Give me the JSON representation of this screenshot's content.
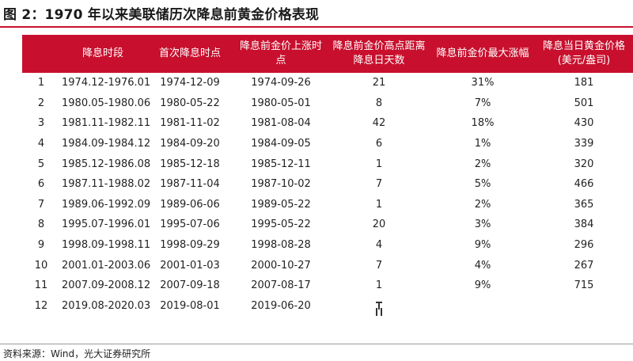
{
  "title": "图 2：1970 年以来美联储历次降息前黄金价格表现",
  "table": {
    "headers": {
      "index": "",
      "period": "降息时段",
      "first_cut": "首次降息时点",
      "rise_point": "降息前金价上涨时点",
      "days_from_peak": "降息前金价高点距离降息日天数",
      "max_gain": "降息前金价最大涨幅",
      "price_on_cut": "降息当日黄金价格(美元/盎司)"
    },
    "rows": [
      {
        "index": "1",
        "period": "1974.12-1976.01",
        "first_cut": "1974-12-09",
        "rise_point": "1974-09-26",
        "days": "21",
        "gain": "31%",
        "price": "181"
      },
      {
        "index": "2",
        "period": "1980.05-1980.06",
        "first_cut": "1980-05-22",
        "rise_point": "1980-05-01",
        "days": "8",
        "gain": "7%",
        "price": "501"
      },
      {
        "index": "3",
        "period": "1981.11-1982.11",
        "first_cut": "1981-11-02",
        "rise_point": "1981-08-04",
        "days": "42",
        "gain": "18%",
        "price": "430"
      },
      {
        "index": "4",
        "period": "1984.09-1984.12",
        "first_cut": "1984-09-20",
        "rise_point": "1984-09-05",
        "days": "6",
        "gain": "1%",
        "price": "339"
      },
      {
        "index": "5",
        "period": "1985.12-1986.08",
        "first_cut": "1985-12-18",
        "rise_point": "1985-12-11",
        "days": "1",
        "gain": "2%",
        "price": "320"
      },
      {
        "index": "6",
        "period": "1987.11-1988.02",
        "first_cut": "1987-11-04",
        "rise_point": "1987-10-02",
        "days": "7",
        "gain": "5%",
        "price": "466"
      },
      {
        "index": "7",
        "period": "1989.06-1992.09",
        "first_cut": "1989-06-06",
        "rise_point": "1989-05-22",
        "days": "1",
        "gain": "2%",
        "price": "365"
      },
      {
        "index": "8",
        "period": "1995.07-1996.01",
        "first_cut": "1995-07-06",
        "rise_point": "1995-05-22",
        "days": "20",
        "gain": "3%",
        "price": "384"
      },
      {
        "index": "9",
        "period": "1998.09-1998.11",
        "first_cut": "1998-09-29",
        "rise_point": "1998-08-28",
        "days": "4",
        "gain": "9%",
        "price": "296"
      },
      {
        "index": "10",
        "period": "2001.01-2003.06",
        "first_cut": "2001-01-03",
        "rise_point": "2000-10-27",
        "days": "7",
        "gain": "4%",
        "price": "267"
      },
      {
        "index": "11",
        "period": "2007.09-2008.12",
        "first_cut": "2007-09-18",
        "rise_point": "2007-08-17",
        "days": "1",
        "gain": "9%",
        "price": "715"
      },
      {
        "index": "12",
        "period": "2019.08-2020.03",
        "first_cut": "2019-08-01",
        "rise_point": "2019-06-20",
        "days": "",
        "gain": "",
        "price": ""
      }
    ]
  },
  "source": "资料来源：Wind，光大证券研究所",
  "colors": {
    "header_bg": "#c8102e",
    "header_text": "#ffffff"
  }
}
